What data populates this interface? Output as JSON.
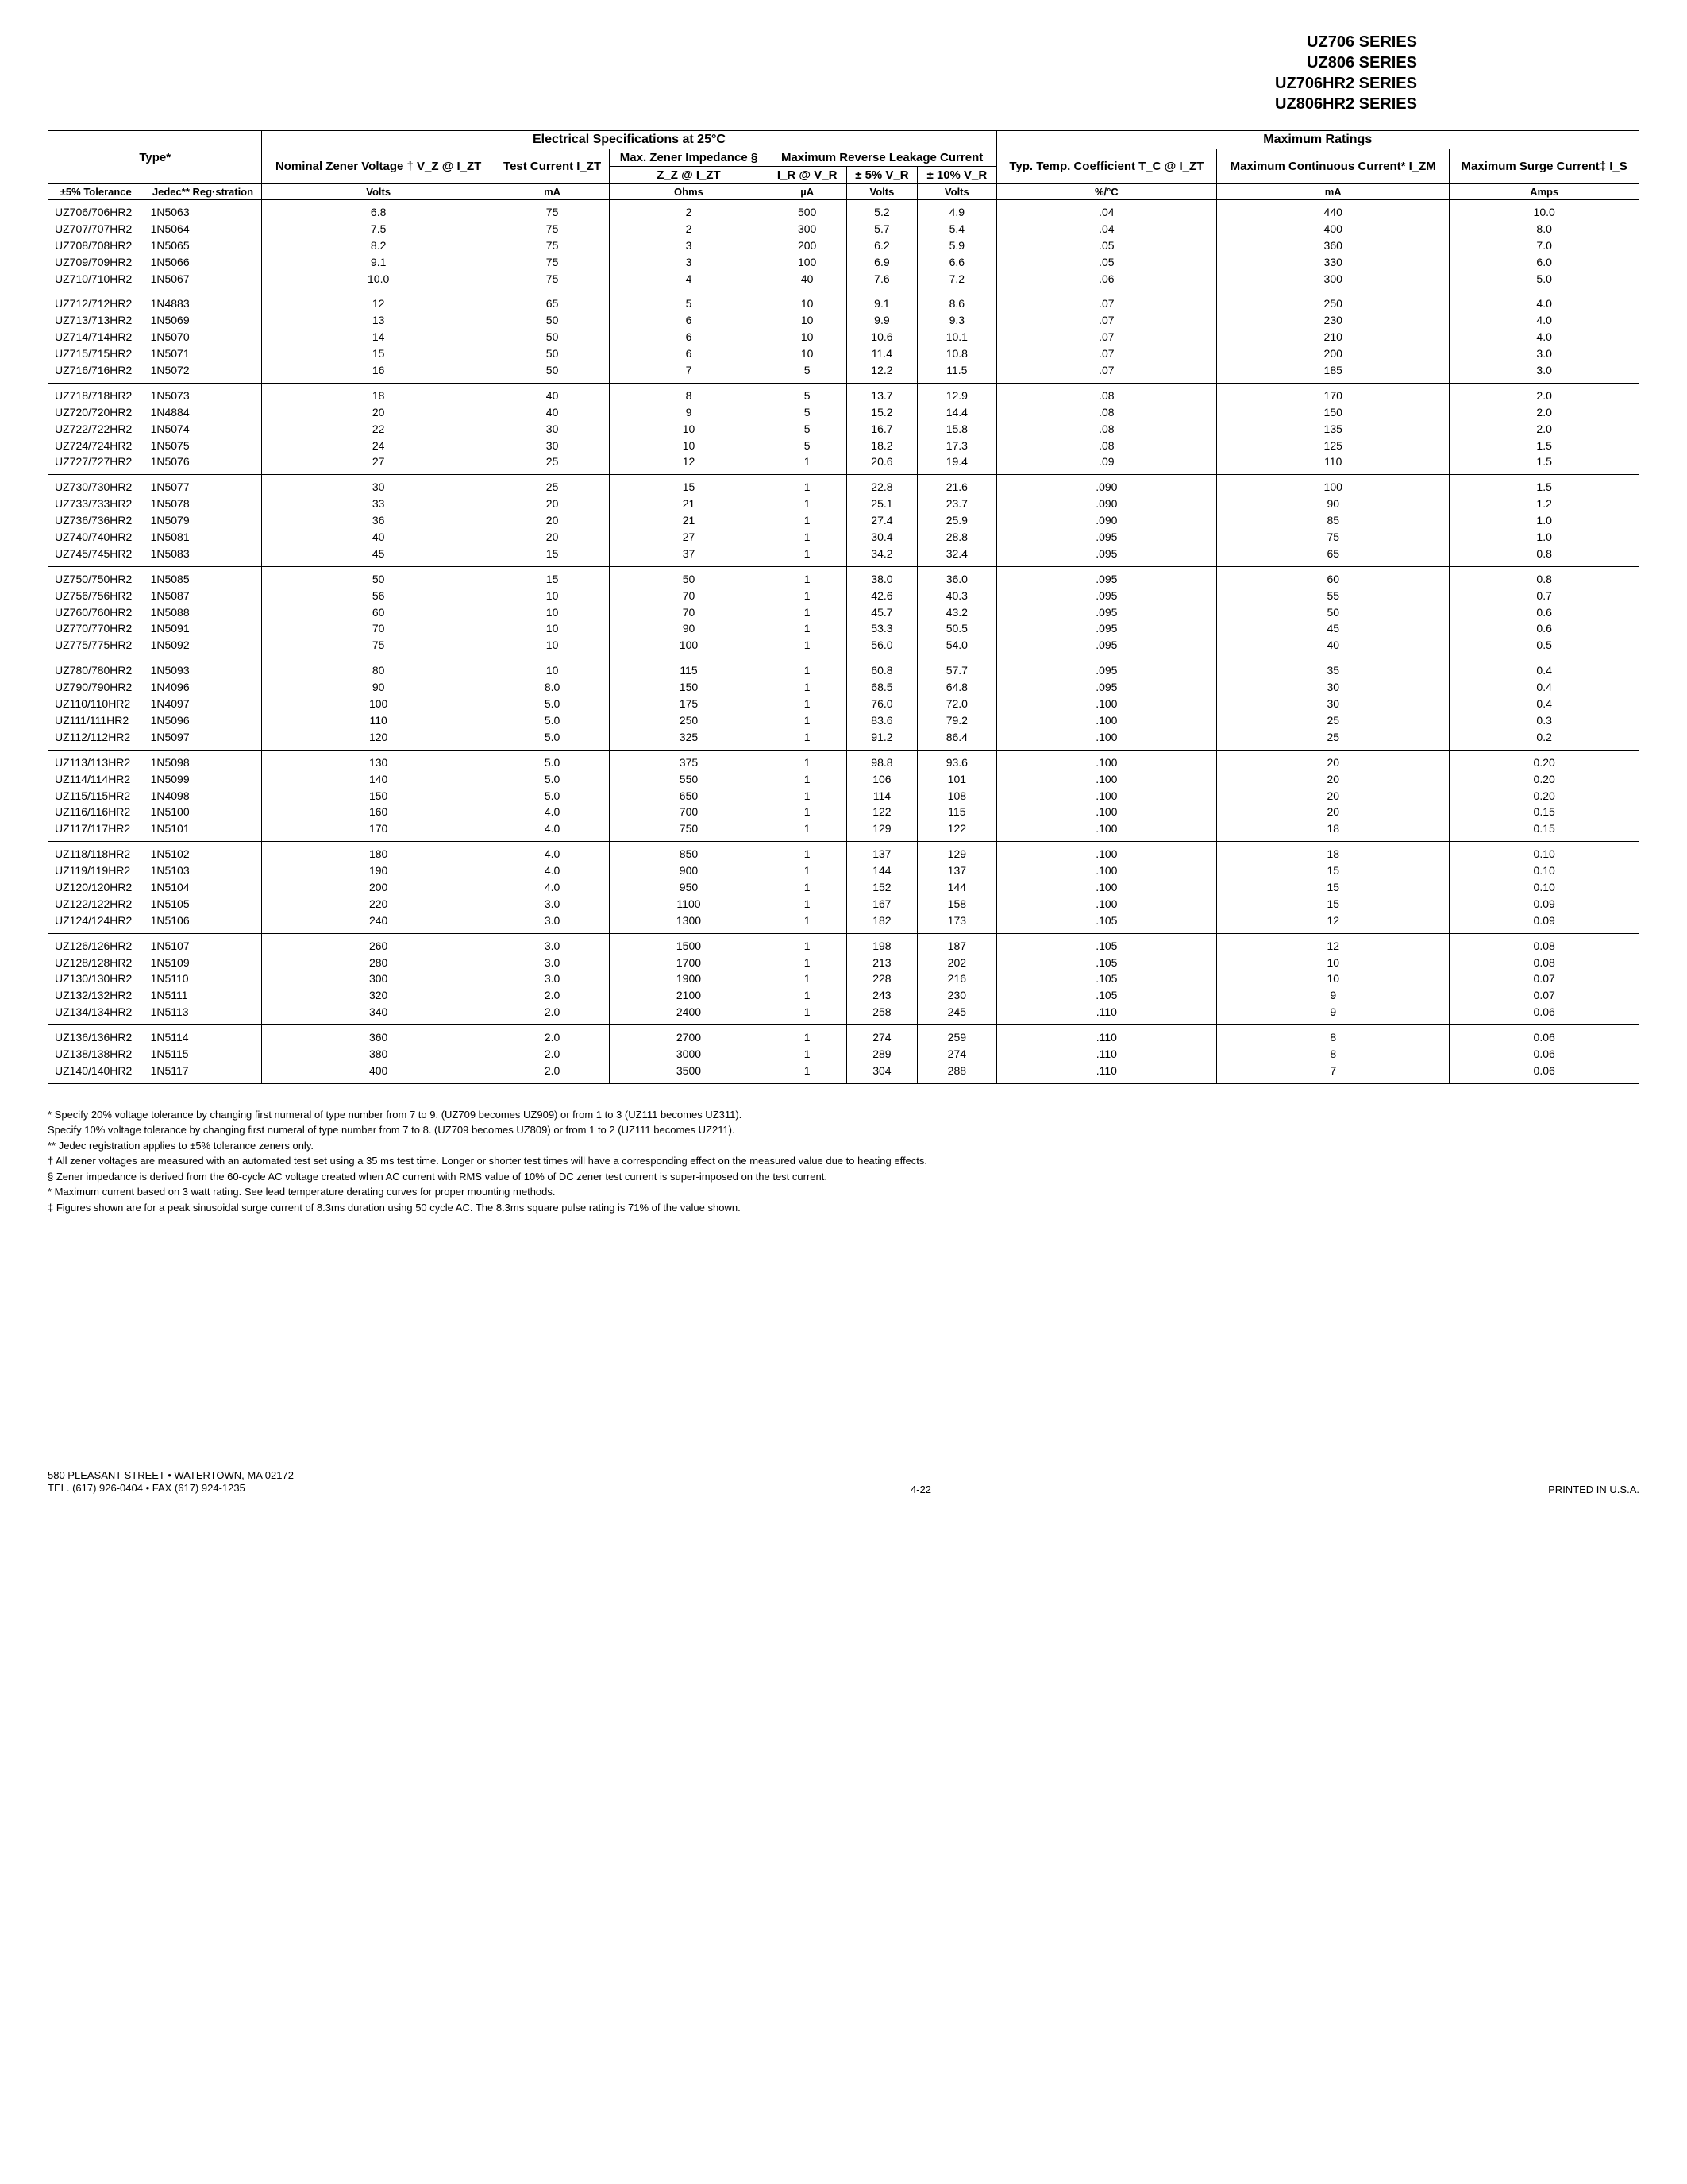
{
  "series": [
    "UZ706 SERIES",
    "UZ806 SERIES",
    "UZ706HR2 SERIES",
    "UZ806HR2 SERIES"
  ],
  "headers": {
    "elec_spec": "Electrical Specifications at 25°C",
    "max_ratings": "Maximum Ratings",
    "type": "Type*",
    "nominal": "Nominal Zener Voltage † V_Z @ I_ZT",
    "test_current": "Test Current I_ZT",
    "max_zener_imp": "Max. Zener Impedance §",
    "max_rev_leak": "Maximum Reverse Leakage Current",
    "zz": "Z_Z @ I_ZT",
    "ir": "I_R @ V_R",
    "pm5": "± 5% V_R",
    "pm10": "± 10% V_R",
    "typ_temp": "Typ. Temp. Coefficient T_C @ I_ZT",
    "max_cont": "Maximum Continuous Current* I_ZM",
    "max_surge": "Maximum Surge Current‡ I_S",
    "tol5": "±5% Tolerance",
    "jedec": "Jedec** Reg·stration"
  },
  "units": {
    "volts": "Volts",
    "ma": "mA",
    "ohms": "Ohms",
    "ua": "µA",
    "volts2": "Volts",
    "volts3": "Volts",
    "pctc": "%/°C",
    "ma2": "mA",
    "amps": "Amps"
  },
  "groups": [
    [
      [
        "UZ706/706HR2",
        "1N5063",
        "6.8",
        "75",
        "2",
        "500",
        "5.2",
        "4.9",
        ".04",
        "440",
        "10.0"
      ],
      [
        "UZ707/707HR2",
        "1N5064",
        "7.5",
        "75",
        "2",
        "300",
        "5.7",
        "5.4",
        ".04",
        "400",
        "8.0"
      ],
      [
        "UZ708/708HR2",
        "1N5065",
        "8.2",
        "75",
        "3",
        "200",
        "6.2",
        "5.9",
        ".05",
        "360",
        "7.0"
      ],
      [
        "UZ709/709HR2",
        "1N5066",
        "9.1",
        "75",
        "3",
        "100",
        "6.9",
        "6.6",
        ".05",
        "330",
        "6.0"
      ],
      [
        "UZ710/710HR2",
        "1N5067",
        "10.0",
        "75",
        "4",
        "40",
        "7.6",
        "7.2",
        ".06",
        "300",
        "5.0"
      ]
    ],
    [
      [
        "UZ712/712HR2",
        "1N4883",
        "12",
        "65",
        "5",
        "10",
        "9.1",
        "8.6",
        ".07",
        "250",
        "4.0"
      ],
      [
        "UZ713/713HR2",
        "1N5069",
        "13",
        "50",
        "6",
        "10",
        "9.9",
        "9.3",
        ".07",
        "230",
        "4.0"
      ],
      [
        "UZ714/714HR2",
        "1N5070",
        "14",
        "50",
        "6",
        "10",
        "10.6",
        "10.1",
        ".07",
        "210",
        "4.0"
      ],
      [
        "UZ715/715HR2",
        "1N5071",
        "15",
        "50",
        "6",
        "10",
        "11.4",
        "10.8",
        ".07",
        "200",
        "3.0"
      ],
      [
        "UZ716/716HR2",
        "1N5072",
        "16",
        "50",
        "7",
        "5",
        "12.2",
        "11.5",
        ".07",
        "185",
        "3.0"
      ]
    ],
    [
      [
        "UZ718/718HR2",
        "1N5073",
        "18",
        "40",
        "8",
        "5",
        "13.7",
        "12.9",
        ".08",
        "170",
        "2.0"
      ],
      [
        "UZ720/720HR2",
        "1N4884",
        "20",
        "40",
        "9",
        "5",
        "15.2",
        "14.4",
        ".08",
        "150",
        "2.0"
      ],
      [
        "UZ722/722HR2",
        "1N5074",
        "22",
        "30",
        "10",
        "5",
        "16.7",
        "15.8",
        ".08",
        "135",
        "2.0"
      ],
      [
        "UZ724/724HR2",
        "1N5075",
        "24",
        "30",
        "10",
        "5",
        "18.2",
        "17.3",
        ".08",
        "125",
        "1.5"
      ],
      [
        "UZ727/727HR2",
        "1N5076",
        "27",
        "25",
        "12",
        "1",
        "20.6",
        "19.4",
        ".09",
        "110",
        "1.5"
      ]
    ],
    [
      [
        "UZ730/730HR2",
        "1N5077",
        "30",
        "25",
        "15",
        "1",
        "22.8",
        "21.6",
        ".090",
        "100",
        "1.5"
      ],
      [
        "UZ733/733HR2",
        "1N5078",
        "33",
        "20",
        "21",
        "1",
        "25.1",
        "23.7",
        ".090",
        "90",
        "1.2"
      ],
      [
        "UZ736/736HR2",
        "1N5079",
        "36",
        "20",
        "21",
        "1",
        "27.4",
        "25.9",
        ".090",
        "85",
        "1.0"
      ],
      [
        "UZ740/740HR2",
        "1N5081",
        "40",
        "20",
        "27",
        "1",
        "30.4",
        "28.8",
        ".095",
        "75",
        "1.0"
      ],
      [
        "UZ745/745HR2",
        "1N5083",
        "45",
        "15",
        "37",
        "1",
        "34.2",
        "32.4",
        ".095",
        "65",
        "0.8"
      ]
    ],
    [
      [
        "UZ750/750HR2",
        "1N5085",
        "50",
        "15",
        "50",
        "1",
        "38.0",
        "36.0",
        ".095",
        "60",
        "0.8"
      ],
      [
        "UZ756/756HR2",
        "1N5087",
        "56",
        "10",
        "70",
        "1",
        "42.6",
        "40.3",
        ".095",
        "55",
        "0.7"
      ],
      [
        "UZ760/760HR2",
        "1N5088",
        "60",
        "10",
        "70",
        "1",
        "45.7",
        "43.2",
        ".095",
        "50",
        "0.6"
      ],
      [
        "UZ770/770HR2",
        "1N5091",
        "70",
        "10",
        "90",
        "1",
        "53.3",
        "50.5",
        ".095",
        "45",
        "0.6"
      ],
      [
        "UZ775/775HR2",
        "1N5092",
        "75",
        "10",
        "100",
        "1",
        "56.0",
        "54.0",
        ".095",
        "40",
        "0.5"
      ]
    ],
    [
      [
        "UZ780/780HR2",
        "1N5093",
        "80",
        "10",
        "115",
        "1",
        "60.8",
        "57.7",
        ".095",
        "35",
        "0.4"
      ],
      [
        "UZ790/790HR2",
        "1N4096",
        "90",
        "8.0",
        "150",
        "1",
        "68.5",
        "64.8",
        ".095",
        "30",
        "0.4"
      ],
      [
        "UZ110/110HR2",
        "1N4097",
        "100",
        "5.0",
        "175",
        "1",
        "76.0",
        "72.0",
        ".100",
        "30",
        "0.4"
      ],
      [
        "UZ111/111HR2",
        "1N5096",
        "110",
        "5.0",
        "250",
        "1",
        "83.6",
        "79.2",
        ".100",
        "25",
        "0.3"
      ],
      [
        "UZ112/112HR2",
        "1N5097",
        "120",
        "5.0",
        "325",
        "1",
        "91.2",
        "86.4",
        ".100",
        "25",
        "0.2"
      ]
    ],
    [
      [
        "UZ113/113HR2",
        "1N5098",
        "130",
        "5.0",
        "375",
        "1",
        "98.8",
        "93.6",
        ".100",
        "20",
        "0.20"
      ],
      [
        "UZ114/114HR2",
        "1N5099",
        "140",
        "5.0",
        "550",
        "1",
        "106",
        "101",
        ".100",
        "20",
        "0.20"
      ],
      [
        "UZ115/115HR2",
        "1N4098",
        "150",
        "5.0",
        "650",
        "1",
        "114",
        "108",
        ".100",
        "20",
        "0.20"
      ],
      [
        "UZ116/116HR2",
        "1N5100",
        "160",
        "4.0",
        "700",
        "1",
        "122",
        "115",
        ".100",
        "20",
        "0.15"
      ],
      [
        "UZ117/117HR2",
        "1N5101",
        "170",
        "4.0",
        "750",
        "1",
        "129",
        "122",
        ".100",
        "18",
        "0.15"
      ]
    ],
    [
      [
        "UZ118/118HR2",
        "1N5102",
        "180",
        "4.0",
        "850",
        "1",
        "137",
        "129",
        ".100",
        "18",
        "0.10"
      ],
      [
        "UZ119/119HR2",
        "1N5103",
        "190",
        "4.0",
        "900",
        "1",
        "144",
        "137",
        ".100",
        "15",
        "0.10"
      ],
      [
        "UZ120/120HR2",
        "1N5104",
        "200",
        "4.0",
        "950",
        "1",
        "152",
        "144",
        ".100",
        "15",
        "0.10"
      ],
      [
        "UZ122/122HR2",
        "1N5105",
        "220",
        "3.0",
        "1100",
        "1",
        "167",
        "158",
        ".100",
        "15",
        "0.09"
      ],
      [
        "UZ124/124HR2",
        "1N5106",
        "240",
        "3.0",
        "1300",
        "1",
        "182",
        "173",
        ".105",
        "12",
        "0.09"
      ]
    ],
    [
      [
        "UZ126/126HR2",
        "1N5107",
        "260",
        "3.0",
        "1500",
        "1",
        "198",
        "187",
        ".105",
        "12",
        "0.08"
      ],
      [
        "UZ128/128HR2",
        "1N5109",
        "280",
        "3.0",
        "1700",
        "1",
        "213",
        "202",
        ".105",
        "10",
        "0.08"
      ],
      [
        "UZ130/130HR2",
        "1N5110",
        "300",
        "3.0",
        "1900",
        "1",
        "228",
        "216",
        ".105",
        "10",
        "0.07"
      ],
      [
        "UZ132/132HR2",
        "1N5111",
        "320",
        "2.0",
        "2100",
        "1",
        "243",
        "230",
        ".105",
        "9",
        "0.07"
      ],
      [
        "UZ134/134HR2",
        "1N5113",
        "340",
        "2.0",
        "2400",
        "1",
        "258",
        "245",
        ".110",
        "9",
        "0.06"
      ]
    ],
    [
      [
        "UZ136/136HR2",
        "1N5114",
        "360",
        "2.0",
        "2700",
        "1",
        "274",
        "259",
        ".110",
        "8",
        "0.06"
      ],
      [
        "UZ138/138HR2",
        "1N5115",
        "380",
        "2.0",
        "3000",
        "1",
        "289",
        "274",
        ".110",
        "8",
        "0.06"
      ],
      [
        "UZ140/140HR2",
        "1N5117",
        "400",
        "2.0",
        "3500",
        "1",
        "304",
        "288",
        ".110",
        "7",
        "0.06"
      ]
    ]
  ],
  "footnotes": [
    "* Specify 20% voltage tolerance by changing first numeral of type number from 7 to 9. (UZ709 becomes UZ909) or from 1 to 3 (UZ111 becomes UZ311).",
    "Specify 10% voltage tolerance by changing first numeral of type number from 7 to 8. (UZ709 becomes UZ809) or from 1 to 2 (UZ111 becomes UZ211).",
    "** Jedec registration applies to ±5% tolerance zeners only.",
    "† All zener voltages are measured with an automated test set using a 35 ms test time. Longer or shorter test times will have a corresponding effect on the measured value due to heating effects.",
    "§ Zener impedance is derived from the 60-cycle AC voltage created when AC current with RMS value of 10% of DC zener test current is super-imposed on the test current.",
    "* Maximum current based on 3 watt rating. See lead temperature derating curves for proper mounting methods.",
    "‡ Figures shown are for a peak sinusoidal surge current of 8.3ms duration using 50 cycle AC. The 8.3ms square pulse rating is 71% of the value shown."
  ],
  "footer": {
    "addr1": "580 PLEASANT STREET • WATERTOWN, MA 02172",
    "addr2": "TEL. (617) 926-0404 • FAX (617) 924-1235",
    "page": "4-22",
    "printed": "PRINTED IN U.S.A."
  }
}
